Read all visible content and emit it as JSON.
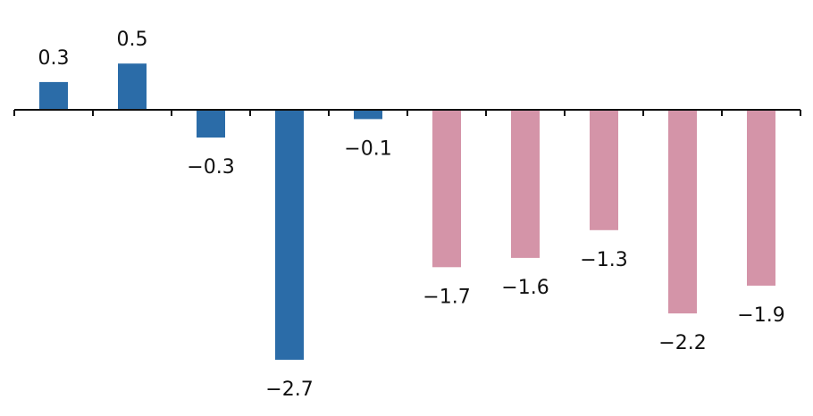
{
  "chart_data": {
    "type": "bar",
    "title": "",
    "xlabel": "",
    "ylabel": "",
    "ylim": [
      -2.7,
      0.5
    ],
    "grid": false,
    "legend": "none",
    "values": [
      0.3,
      0.5,
      -0.3,
      -2.7,
      -0.1,
      -1.7,
      -1.6,
      -1.3,
      -2.2,
      -1.9
    ],
    "labels": [
      "0.3",
      "0.5",
      "−0.3",
      "−2.7",
      "−0.1",
      "−1.7",
      "−1.6",
      "−1.3",
      "−2.2",
      "−1.9"
    ],
    "bar_colors": [
      "#2B6CA8",
      "#2B6CA8",
      "#2B6CA8",
      "#2B6CA8",
      "#2B6CA8",
      "#D494A8",
      "#D494A8",
      "#D494A8",
      "#D494A8",
      "#D494A8"
    ],
    "axis_color": "#111111"
  }
}
